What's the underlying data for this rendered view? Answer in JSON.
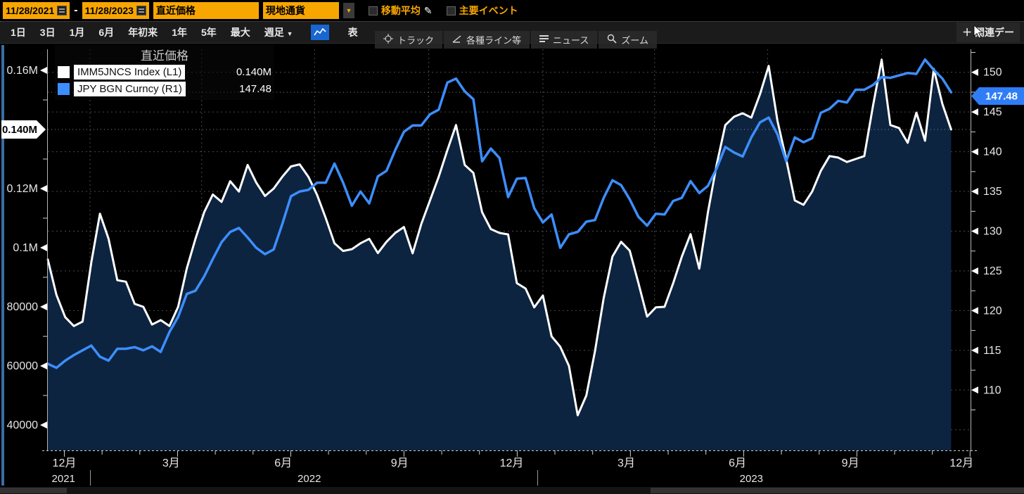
{
  "top_bar": {
    "date_from": "11/28/2021",
    "date_to": "11/28/2023",
    "range_separator": "-",
    "price_mode": "直近価格",
    "currency_mode": "現地通貨",
    "dropdown_arrow": "▼",
    "moving_average_label": "移動平均",
    "key_events_label": "主要イベント",
    "pencil_icon": "✎"
  },
  "range_bar": {
    "buttons": [
      "1日",
      "3日",
      "1月",
      "6月",
      "年初来",
      "1年",
      "5年",
      "最大"
    ],
    "frequency_label": "週足",
    "frequency_arrow": "▼",
    "table_label": "表",
    "related_label": "＋ 関連デー"
  },
  "chart_toolbar": {
    "buttons": [
      {
        "icon": "crosshair-icon",
        "label": "トラック"
      },
      {
        "icon": "annotate-line-icon",
        "label": "各種ライン等"
      },
      {
        "icon": "news-icon",
        "label": "ニュース"
      },
      {
        "icon": "zoom-icon",
        "label": "ズーム"
      }
    ]
  },
  "legend": {
    "title": "直近価格",
    "series": [
      {
        "name": "IMM5JNCS Index  (L1)",
        "value": "0.140M",
        "color": "#ffffff"
      },
      {
        "name": "JPY BGN Curncy  (R1)",
        "value": "147.48",
        "color": "#3d8eff"
      }
    ]
  },
  "colors": {
    "amber": "#F7A600",
    "white_series": "#ffffff",
    "blue_series": "#3d8eff",
    "area_fill": "#0d2440",
    "grid": "#4a4a4a",
    "axis_text": "#e6e6e6",
    "right_tag_bg": "#2F7DF6",
    "left_tag_bg": "#ffffff"
  },
  "chart_data": {
    "type": "line",
    "title": "直近価格",
    "x_unit": "weeks since 2021-11-28, weekly data to 2023-11-28",
    "legend_position": "top-left",
    "grid": "dashed",
    "series": [
      {
        "name": "IMM5JNCS Index (L1)",
        "axis": "left",
        "style": "area-line",
        "color": "#ffffff",
        "last_label": "0.140M",
        "values": [
          96000,
          84000,
          76500,
          73500,
          75000,
          95000,
          111500,
          103000,
          89000,
          88500,
          81000,
          80000,
          74000,
          75500,
          73500,
          80000,
          93000,
          103000,
          112000,
          118000,
          115500,
          122500,
          119000,
          128000,
          122000,
          117500,
          120000,
          124000,
          127500,
          128200,
          124000,
          117900,
          110000,
          101500,
          98900,
          99500,
          101500,
          103000,
          98200,
          102000,
          105000,
          107000,
          98100,
          108000,
          116000,
          124000,
          133000,
          141500,
          128000,
          125300,
          112000,
          106300,
          105000,
          104500,
          88000,
          86200,
          79800,
          83800,
          70000,
          66500,
          60000,
          43300,
          50000,
          65000,
          83000,
          97000,
          102000,
          99000,
          88000,
          76700,
          79800,
          80000,
          88000,
          97000,
          104600,
          92900,
          112000,
          128000,
          141500,
          144300,
          145500,
          144000,
          152000,
          161500,
          143000,
          130000,
          116000,
          114500,
          119000,
          126000,
          131000,
          130500,
          129000,
          130000,
          131000,
          148000,
          163600,
          141500,
          140500,
          135500,
          145700,
          136200,
          160500,
          148600,
          140000
        ]
      },
      {
        "name": "JPY BGN Curncy (R1)",
        "axis": "right",
        "style": "line",
        "color": "#3d8eff",
        "last_label": "147.48",
        "values": [
          113.3,
          112.8,
          113.7,
          114.4,
          115.0,
          115.6,
          114.2,
          113.7,
          115.2,
          115.2,
          115.4,
          115.0,
          115.5,
          114.8,
          117.3,
          119.2,
          122.1,
          122.5,
          124.3,
          126.5,
          128.6,
          129.9,
          130.4,
          129.2,
          127.9,
          127.1,
          127.7,
          130.9,
          134.4,
          135.0,
          135.2,
          136.1,
          136.1,
          138.5,
          136.1,
          133.2,
          135.0,
          133.5,
          136.9,
          137.6,
          140.2,
          142.5,
          143.3,
          143.3,
          144.7,
          145.3,
          148.7,
          149.2,
          147.6,
          146.6,
          138.8,
          140.4,
          139.2,
          134.3,
          136.6,
          136.7,
          132.9,
          131.1,
          132.1,
          127.9,
          129.6,
          129.9,
          131.2,
          131.4,
          134.2,
          136.4,
          135.8,
          134.0,
          131.8,
          130.7,
          132.2,
          132.1,
          133.8,
          134.2,
          136.3,
          134.8,
          135.7,
          137.9,
          140.6,
          139.9,
          139.4,
          141.8,
          143.7,
          144.3,
          142.2,
          138.8,
          141.8,
          141.2,
          141.7,
          144.9,
          145.4,
          146.4,
          146.2,
          147.8,
          147.8,
          148.4,
          149.4,
          149.3,
          149.6,
          149.9,
          149.8,
          151.6,
          150.3,
          149.2,
          147.48
        ]
      }
    ],
    "left_axis": {
      "labels": [
        {
          "value": 160000,
          "text": "0.16M"
        },
        {
          "value": 120000,
          "text": "0.12M"
        },
        {
          "value": 100000,
          "text": "0.1M"
        },
        {
          "value": 80000,
          "text": "80000"
        },
        {
          "value": 60000,
          "text": "60000"
        },
        {
          "value": 40000,
          "text": "40000"
        }
      ],
      "minor_values": [
        150000,
        130000,
        110000,
        90000,
        70000,
        50000
      ],
      "tag": {
        "value": 140000,
        "text": "0.140M"
      },
      "range_top": 165200,
      "range_bottom": 31500
    },
    "right_axis": {
      "labels": [
        {
          "value": 150,
          "text": "150"
        },
        {
          "value": 145,
          "text": "145"
        },
        {
          "value": 140,
          "text": "140"
        },
        {
          "value": 135,
          "text": "135"
        },
        {
          "value": 130,
          "text": "130"
        },
        {
          "value": 125,
          "text": "125"
        },
        {
          "value": 120,
          "text": "120"
        },
        {
          "value": 115,
          "text": "115"
        },
        {
          "value": 110,
          "text": "110"
        }
      ],
      "gridline_values": [
        150,
        145,
        140,
        135,
        130,
        125,
        120,
        115,
        110,
        105
      ],
      "tag": {
        "value": 147.48,
        "text": "147.48"
      },
      "range_top": 152.5,
      "range_bottom": 102.4
    },
    "x_axis": {
      "months": [
        {
          "text": "12月",
          "wk": 1.9
        },
        {
          "text": "3月",
          "wk": 14.2
        },
        {
          "text": "6月",
          "wk": 27.1
        },
        {
          "text": "9月",
          "wk": 40.5
        },
        {
          "text": "12月",
          "wk": 53.4
        },
        {
          "text": "3月",
          "wk": 66.6
        },
        {
          "text": "6月",
          "wk": 79.4
        },
        {
          "text": "9月",
          "wk": 92.4
        },
        {
          "text": "12月",
          "wk": 105.2
        }
      ],
      "years": [
        {
          "text": "2021",
          "wk": 1.8
        },
        {
          "text": "2022",
          "wk": 30.1
        },
        {
          "text": "2023",
          "wk": 81.0
        }
      ],
      "year_separators_wk": [
        4.9,
        56.4
      ],
      "quarter_grid_wk": [
        4.86,
        17.71,
        30.71,
        43.86,
        57.0,
        69.86,
        82.86,
        96.0
      ]
    }
  }
}
